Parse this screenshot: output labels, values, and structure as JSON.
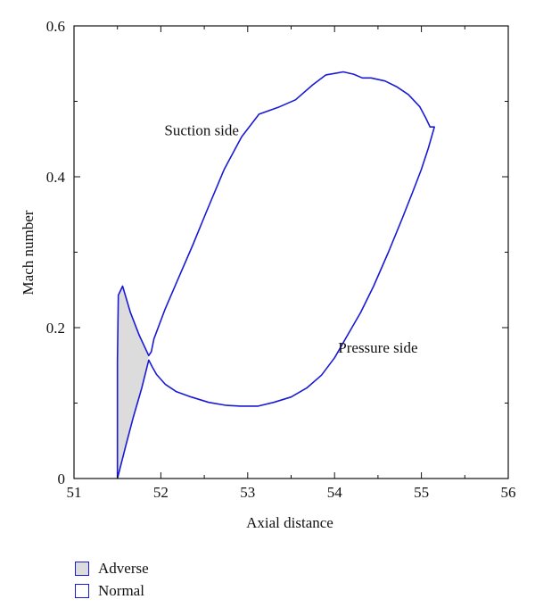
{
  "chart_data": {
    "type": "line",
    "title": "",
    "xlabel": "Axial distance",
    "ylabel": "Mach number",
    "xlim": [
      51,
      56
    ],
    "ylim": [
      0,
      0.6
    ],
    "xticks": [
      51,
      52,
      53,
      54,
      55,
      56
    ],
    "yticks": [
      0,
      0.2,
      0.4,
      0.6
    ],
    "xtick_labels": [
      "51",
      "52",
      "53",
      "54",
      "55",
      "56"
    ],
    "ytick_labels": [
      "0",
      "0.2",
      "0.4",
      "0.6"
    ],
    "grid": false,
    "legend_position": "bottom-left",
    "annotations": [
      {
        "text": "Suction side",
        "x": 52.47,
        "y": 0.455
      },
      {
        "text": "Pressure side",
        "x": 54.5,
        "y": 0.167
      }
    ],
    "series": [
      {
        "name": "Normal",
        "color": "#1a1ad6",
        "x": [
          51.5,
          51.5,
          51.51,
          51.56,
          51.65,
          51.75,
          51.86,
          51.89,
          51.92,
          52.05,
          52.2,
          52.37,
          52.53,
          52.73,
          52.93,
          53.13,
          53.35,
          53.55,
          53.75,
          53.9,
          54.1,
          54.22,
          54.32,
          54.42,
          54.58,
          54.72,
          54.85,
          54.98,
          55.05,
          55.1,
          55.15,
          55.08,
          55.0,
          54.9,
          54.78,
          54.62,
          54.45,
          54.3,
          54.15,
          54.0,
          53.85,
          53.68,
          53.5,
          53.3,
          53.12,
          52.92,
          52.75,
          52.55,
          52.35,
          52.18,
          52.05,
          51.95,
          51.9,
          51.86,
          51.78,
          51.68,
          51.6,
          51.5
        ],
        "y": [
          0.0,
          0.155,
          0.243,
          0.255,
          0.22,
          0.19,
          0.163,
          0.168,
          0.185,
          0.225,
          0.265,
          0.31,
          0.355,
          0.41,
          0.453,
          0.483,
          0.492,
          0.502,
          0.522,
          0.535,
          0.539,
          0.536,
          0.531,
          0.531,
          0.527,
          0.519,
          0.509,
          0.493,
          0.478,
          0.466,
          0.466,
          0.438,
          0.41,
          0.38,
          0.345,
          0.3,
          0.255,
          0.22,
          0.19,
          0.16,
          0.137,
          0.12,
          0.108,
          0.101,
          0.096,
          0.096,
          0.097,
          0.101,
          0.108,
          0.115,
          0.125,
          0.138,
          0.148,
          0.157,
          0.12,
          0.08,
          0.045,
          0.0
        ]
      },
      {
        "name": "Adverse",
        "color": "#dcdcdc",
        "x": [
          51.5,
          51.5,
          51.51,
          51.56,
          51.65,
          51.75,
          51.86,
          51.78,
          51.68,
          51.6,
          51.5
        ],
        "y": [
          0.0,
          0.155,
          0.243,
          0.255,
          0.22,
          0.19,
          0.163,
          0.12,
          0.08,
          0.045,
          0.0
        ]
      }
    ]
  }
}
